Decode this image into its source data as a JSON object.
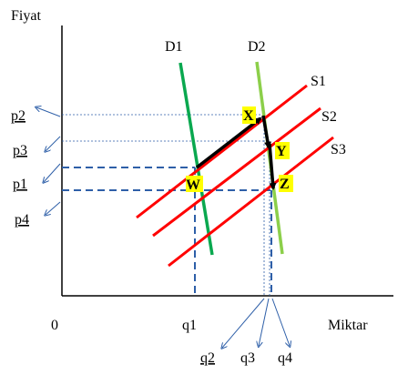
{
  "axes": {
    "y_label": "Fiyat",
    "x_label": "Miktar",
    "origin": "0"
  },
  "curves": {
    "d1": "D1",
    "d2": "D2",
    "s1": "S1",
    "s2": "S2",
    "s3": "S3"
  },
  "points": {
    "x": "X",
    "y": "Y",
    "w": "W",
    "z": "Z"
  },
  "price_labels": {
    "p2": "p2",
    "p3": "p3",
    "p1": "p1",
    "p4": "p4"
  },
  "quantity_labels": {
    "q1": "q1",
    "q2": "q2",
    "q3": "q3",
    "q4": "q4"
  },
  "colors": {
    "demand_d1": "#0aa84f",
    "demand_d2": "#8ccf4a",
    "supply": "#ff0000",
    "arrow": "#000000",
    "guide": "#2e5fa8",
    "label_highlight": "#ffff00",
    "link": "#2e5fa8"
  }
}
